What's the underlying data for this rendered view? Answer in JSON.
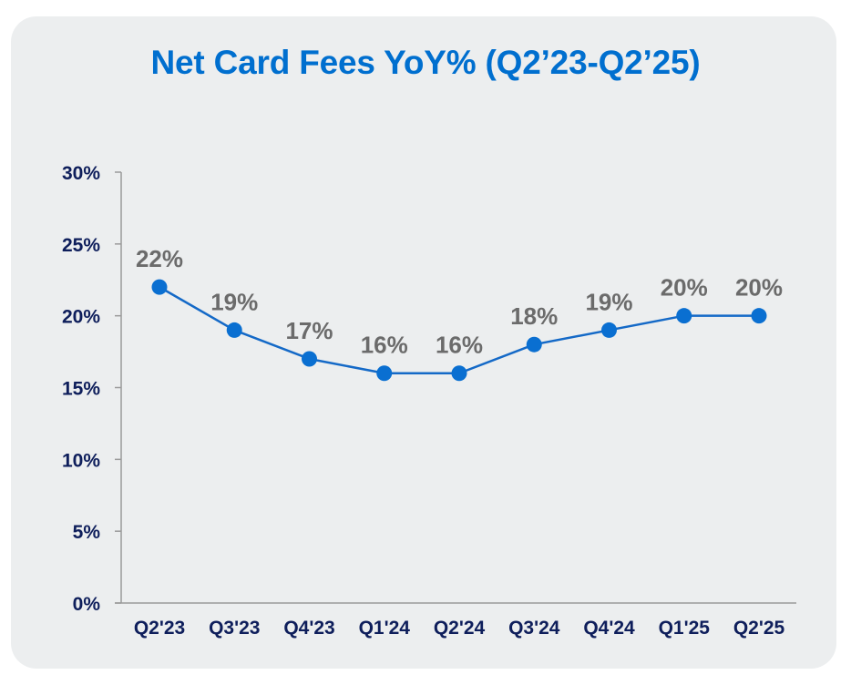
{
  "chart_data": {
    "type": "line",
    "title": "Net Card Fees YoY% (Q2’23-Q2’25)",
    "categories": [
      "Q2'23",
      "Q3'23",
      "Q4'23",
      "Q1'24",
      "Q2'24",
      "Q3'24",
      "Q4'24",
      "Q1'25",
      "Q2'25"
    ],
    "values": [
      22,
      19,
      17,
      16,
      16,
      18,
      19,
      20,
      20
    ],
    "data_labels": [
      "22%",
      "19%",
      "17%",
      "16%",
      "16%",
      "18%",
      "19%",
      "20%",
      "20%"
    ],
    "y_ticks": [
      0,
      5,
      10,
      15,
      20,
      25,
      30
    ],
    "y_tick_labels": [
      "0%",
      "5%",
      "10%",
      "15%",
      "20%",
      "25%",
      "30%"
    ],
    "ylim": [
      0,
      30
    ],
    "xlabel": "",
    "ylabel": "",
    "grid": false,
    "legend": "none",
    "colors": {
      "line": "#1469c7",
      "marker": "#0a6fd1",
      "title": "#006fcf",
      "tick_label": "#0e1e5b",
      "data_label": "#6b6b6b",
      "axis": "#9a9a9a",
      "card_background": "#eceeef"
    }
  }
}
